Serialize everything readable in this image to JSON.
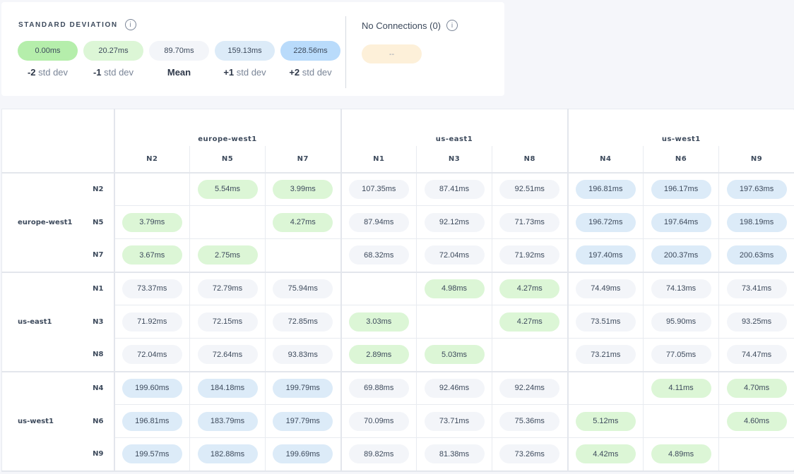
{
  "legend": {
    "title": "STANDARD DEVIATION",
    "info_icon": "info-icon",
    "bands": [
      {
        "value": "0.00ms",
        "sign": "-2",
        "suffix": " std dev",
        "color": "#b5eeab"
      },
      {
        "value": "20.27ms",
        "sign": "-1",
        "suffix": " std dev",
        "color": "#dcf6d6"
      },
      {
        "value": "89.70ms",
        "sign": "Mean",
        "suffix": "",
        "color": "#f3f5f9"
      },
      {
        "value": "159.13ms",
        "sign": "+1",
        "suffix": " std dev",
        "color": "#dcebf8"
      },
      {
        "value": "228.56ms",
        "sign": "+2",
        "suffix": " std dev",
        "color": "#b9dbfb"
      }
    ],
    "no_connections": {
      "title": "No Connections (0)",
      "value": "--",
      "color": "#fdf0d9"
    }
  },
  "matrix": {
    "groups": [
      {
        "name": "europe-west1",
        "nodes": [
          "N2",
          "N5",
          "N7"
        ]
      },
      {
        "name": "us-east1",
        "nodes": [
          "N1",
          "N3",
          "N8"
        ]
      },
      {
        "name": "us-west1",
        "nodes": [
          "N4",
          "N6",
          "N9"
        ]
      }
    ],
    "rows": [
      [
        null,
        "5.54ms",
        "3.99ms",
        "107.35ms",
        "87.41ms",
        "92.51ms",
        "196.81ms",
        "196.17ms",
        "197.63ms"
      ],
      [
        "3.79ms",
        null,
        "4.27ms",
        "87.94ms",
        "92.12ms",
        "71.73ms",
        "196.72ms",
        "197.64ms",
        "198.19ms"
      ],
      [
        "3.67ms",
        "2.75ms",
        null,
        "68.32ms",
        "72.04ms",
        "71.92ms",
        "197.40ms",
        "200.37ms",
        "200.63ms"
      ],
      [
        "73.37ms",
        "72.79ms",
        "75.94ms",
        null,
        "4.98ms",
        "4.27ms",
        "74.49ms",
        "74.13ms",
        "73.41ms"
      ],
      [
        "71.92ms",
        "72.15ms",
        "72.85ms",
        "3.03ms",
        null,
        "4.27ms",
        "73.51ms",
        "95.90ms",
        "93.25ms"
      ],
      [
        "72.04ms",
        "72.64ms",
        "93.83ms",
        "2.89ms",
        "5.03ms",
        null,
        "73.21ms",
        "77.05ms",
        "74.47ms"
      ],
      [
        "199.60ms",
        "184.18ms",
        "199.79ms",
        "69.88ms",
        "92.46ms",
        "92.24ms",
        null,
        "4.11ms",
        "4.70ms"
      ],
      [
        "196.81ms",
        "183.79ms",
        "197.79ms",
        "70.09ms",
        "73.71ms",
        "75.36ms",
        "5.12ms",
        null,
        "4.60ms"
      ],
      [
        "199.57ms",
        "182.88ms",
        "199.69ms",
        "89.82ms",
        "81.38ms",
        "73.26ms",
        "4.42ms",
        "4.89ms",
        null
      ]
    ]
  }
}
